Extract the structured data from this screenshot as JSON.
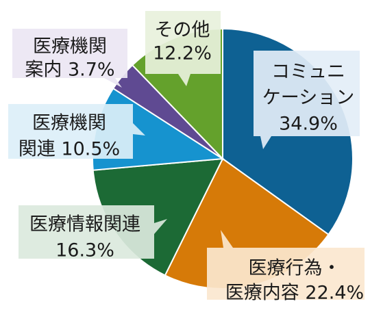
{
  "chart_data": {
    "type": "pie",
    "title": "",
    "start_angle_deg": 0,
    "direction": "clockwise",
    "slices": [
      {
        "label_lines": [
          "コミュニ",
          "ケーション",
          "34.9%"
        ],
        "value": 34.9,
        "color": "#0e6193",
        "callout_color": "#e3eef7"
      },
      {
        "label_lines": [
          "医療行為・",
          "医療内容 22.4%"
        ],
        "value": 22.4,
        "color": "#d67a08",
        "callout_color": "#fbe7cf"
      },
      {
        "label_lines": [
          "医療情報関連",
          "16.3%"
        ],
        "value": 16.3,
        "color": "#1c6a35",
        "callout_color": "#dbe9dd"
      },
      {
        "label_lines": [
          "医療機関",
          "関連 10.5%"
        ],
        "value": 10.5,
        "color": "#1693cf",
        "callout_color": "#dceff9"
      },
      {
        "label_lines": [
          "医療機関",
          "案内 3.7%"
        ],
        "value": 3.7,
        "color": "#5f4a92",
        "callout_color": "#ebe6f3"
      },
      {
        "label_lines": [
          "その他",
          "12.2%"
        ],
        "value": 12.2,
        "color": "#64a12c",
        "callout_color": "#e8f1dc"
      }
    ]
  }
}
